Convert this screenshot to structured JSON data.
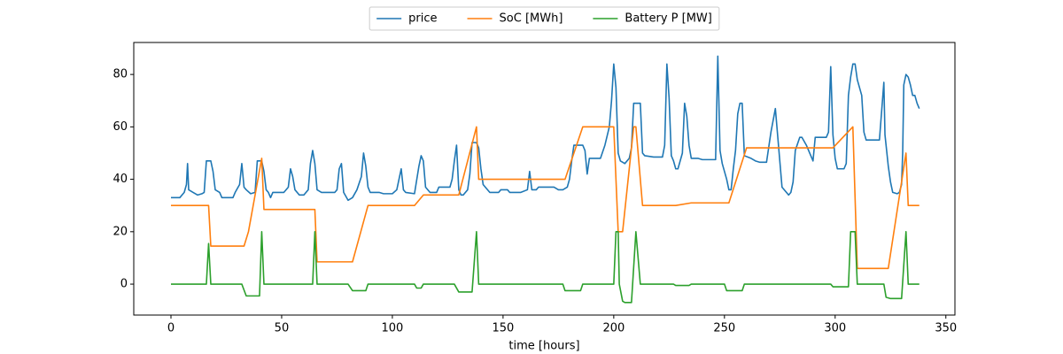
{
  "chart_data": {
    "type": "line",
    "xlabel": "time [hours]",
    "xlim": [
      -16.8,
      354.1
    ],
    "ylim": [
      -11.8,
      92.2
    ],
    "xticks": [
      0,
      50,
      100,
      150,
      200,
      250,
      300,
      350
    ],
    "yticks": [
      0,
      20,
      40,
      60,
      80
    ],
    "grid": false,
    "legend": "top-center-outside",
    "series": [
      {
        "name": "price",
        "color": "#1f77b4",
        "x": [
          0,
          4,
          6,
          7,
          7.5,
          8,
          10,
          12,
          14,
          15,
          16,
          18,
          19,
          20,
          22,
          23,
          28,
          29,
          31,
          32,
          33,
          34,
          36,
          38,
          39,
          41,
          42,
          43,
          44,
          45,
          46,
          51,
          53,
          54,
          55,
          56,
          58,
          60,
          62,
          63,
          64,
          65,
          66,
          68,
          74,
          75,
          76,
          77,
          78,
          80,
          82,
          84,
          86,
          87,
          88,
          89,
          90,
          94,
          96,
          100,
          102,
          103,
          104,
          105,
          106,
          110,
          112,
          113,
          114,
          115,
          117,
          120,
          121,
          126,
          127,
          128,
          129,
          130,
          131,
          132,
          134,
          135,
          136,
          138,
          139,
          140,
          141,
          142,
          144,
          148,
          149,
          152,
          153,
          158,
          161,
          162,
          163,
          165,
          166,
          173,
          175,
          177,
          179,
          180,
          181,
          182,
          186,
          187,
          188,
          189,
          194,
          196,
          198,
          199,
          200,
          201,
          202,
          203,
          205,
          207,
          208,
          209,
          212,
          213,
          214,
          218,
          222,
          223,
          224,
          225,
          226,
          227,
          228,
          229,
          230,
          231,
          232,
          233,
          234,
          235,
          238,
          240,
          246,
          247,
          248,
          249,
          251,
          252,
          253,
          254,
          255,
          256,
          257,
          258,
          259,
          262,
          264,
          266,
          269,
          271,
          273,
          275,
          276,
          279,
          280,
          281,
          282,
          284,
          285,
          287,
          288.5,
          290,
          291,
          296,
          297,
          298,
          299,
          300,
          301,
          304,
          305,
          306,
          307,
          308,
          309,
          310,
          312,
          313,
          314,
          320,
          322,
          322.5,
          324,
          325,
          326,
          328,
          329,
          330,
          330.5,
          331,
          332,
          333,
          334,
          335,
          336,
          337,
          338
        ],
        "values": [
          33,
          33,
          35,
          38,
          46,
          36,
          35,
          34,
          34.5,
          35,
          47,
          47,
          43,
          36,
          35,
          33,
          33,
          35,
          38,
          46,
          37,
          36,
          34.5,
          35,
          47,
          47,
          43,
          36,
          35,
          33,
          35,
          35,
          37,
          44,
          41,
          36,
          34,
          34,
          36,
          46,
          51,
          46,
          36,
          35,
          35,
          36,
          44,
          46,
          35,
          32,
          33,
          36,
          41,
          50,
          45,
          37,
          35,
          35,
          34.5,
          34.5,
          36,
          40,
          44,
          36,
          35,
          34.5,
          45,
          49,
          47,
          37,
          35,
          35,
          37,
          37,
          40,
          47,
          53,
          36,
          34,
          34,
          36,
          42,
          54,
          54,
          52,
          44,
          38,
          37,
          35,
          35,
          36,
          36,
          35,
          35,
          36,
          43,
          36,
          36,
          37,
          37,
          36,
          36,
          37,
          40,
          47,
          53,
          53,
          51,
          42,
          48,
          48,
          53,
          60,
          70,
          84,
          75,
          50,
          47,
          46,
          48,
          52,
          69,
          69,
          50,
          49,
          48.5,
          48.5,
          53,
          84,
          71,
          49,
          47,
          44,
          44,
          47,
          50,
          69,
          64,
          53,
          48,
          48,
          47.5,
          47.5,
          87,
          51,
          46,
          40,
          36,
          36,
          44,
          51,
          65,
          69,
          69,
          49,
          48,
          47,
          46.5,
          46.5,
          58,
          67,
          47,
          37,
          34,
          35,
          39,
          51,
          56,
          56,
          53,
          50,
          47,
          56,
          56,
          58,
          83,
          57,
          48,
          44,
          44,
          46,
          72,
          79,
          84,
          84,
          78,
          72,
          58,
          55,
          55,
          77,
          57,
          45,
          39,
          35,
          34.5,
          35,
          38,
          50,
          76,
          80,
          79,
          76,
          72,
          72,
          69,
          67
        ]
      },
      {
        "name": "SoC [MWh]",
        "color": "#ff7f0e",
        "x": [
          0,
          17,
          18,
          33,
          35,
          41,
          42,
          65,
          66,
          82,
          89,
          110,
          114,
          130,
          138,
          139,
          178,
          186,
          200,
          202,
          204,
          209,
          210,
          213,
          228,
          235,
          252,
          260,
          299,
          308,
          310,
          324,
          332,
          333,
          338
        ],
        "values": [
          30,
          30,
          14.5,
          14.5,
          20,
          48,
          28.5,
          28.5,
          8.5,
          8.5,
          30,
          30,
          34,
          34,
          60,
          40,
          40,
          60,
          60,
          20,
          20,
          60,
          60,
          30,
          30,
          31,
          31,
          52,
          52,
          60,
          6,
          6,
          50,
          30,
          30
        ]
      },
      {
        "name": "Battery P [MW]",
        "color": "#2ca02c",
        "x": [
          0,
          16,
          17,
          18,
          32,
          34,
          40,
          41,
          42,
          64,
          65,
          66,
          80,
          82,
          88,
          89,
          110,
          111,
          113,
          114,
          128,
          130,
          136,
          138,
          139,
          177,
          178,
          185,
          186,
          200,
          201,
          202,
          202.5,
          204,
          205,
          208,
          210,
          212,
          227,
          228,
          234,
          235,
          250,
          251,
          258,
          259,
          298,
          299,
          306,
          307,
          309,
          310,
          322,
          323,
          325,
          330,
          332,
          333,
          338
        ],
        "values": [
          0,
          0,
          15.5,
          0,
          0,
          -4.5,
          -4.5,
          20,
          0,
          0,
          20,
          0,
          0,
          -2.5,
          -2.5,
          0,
          0,
          -1.5,
          -1.5,
          0,
          0,
          -3,
          -3,
          20,
          0,
          0,
          -2.5,
          -2.5,
          0,
          0,
          20,
          20,
          0,
          -6.5,
          -7,
          -7,
          20,
          0,
          0,
          -0.5,
          -0.5,
          0,
          0,
          -2.5,
          -2.5,
          0,
          0,
          -1,
          -1,
          20,
          20,
          0,
          0,
          -5,
          -5.5,
          -5.5,
          20,
          0,
          0
        ]
      }
    ]
  }
}
